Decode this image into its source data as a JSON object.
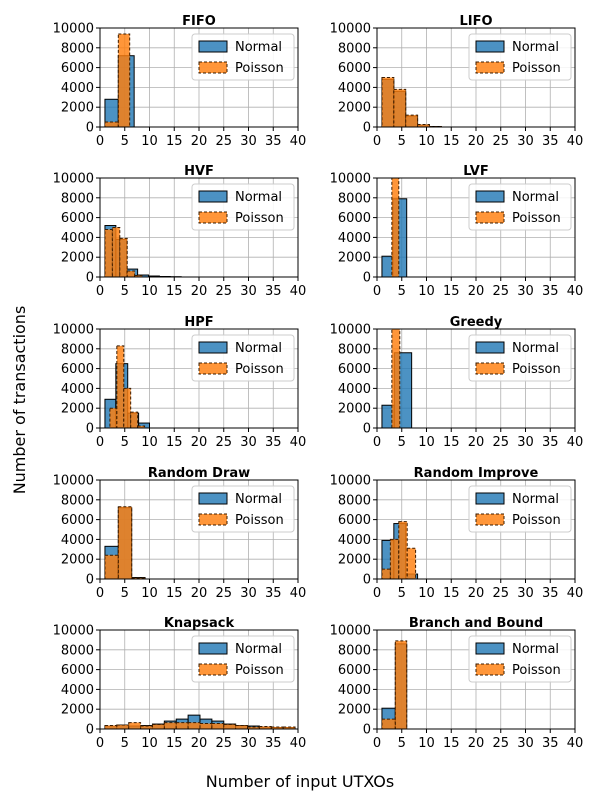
{
  "figure": {
    "xlabel": "Number of input UTXOs",
    "ylabel": "Number of transactions",
    "colors": {
      "normal": "#1f77b4",
      "poisson": "#ff7f0e"
    }
  },
  "chart_data": [
    {
      "type": "bar",
      "title": "FIFO",
      "xlim": [
        0,
        40
      ],
      "ylim": [
        0,
        10000
      ],
      "xticks": [
        "0",
        "5",
        "10",
        "15",
        "20",
        "25",
        "30",
        "35",
        "40"
      ],
      "yticks": [
        "0",
        "2000",
        "4000",
        "6000",
        "8000",
        "10000"
      ],
      "legend": [
        "Normal",
        "Poisson"
      ],
      "legend_position": "top-right",
      "grid": true,
      "series": [
        {
          "name": "Normal",
          "bins": [
            [
              1,
              3.7,
              2800
            ],
            [
              3.7,
              6.9,
              7200
            ]
          ]
        },
        {
          "name": "Poisson",
          "bins": [
            [
              1,
              3.7,
              500
            ],
            [
              3.7,
              6,
              9400
            ]
          ]
        }
      ]
    },
    {
      "type": "bar",
      "title": "LIFO",
      "xlim": [
        0,
        40
      ],
      "ylim": [
        0,
        10000
      ],
      "xticks": [
        "0",
        "5",
        "10",
        "15",
        "20",
        "25",
        "30",
        "35",
        "40"
      ],
      "yticks": [
        "0",
        "2000",
        "4000",
        "6000",
        "8000",
        "10000"
      ],
      "legend": [
        "Normal",
        "Poisson"
      ],
      "legend_position": "top-right",
      "grid": true,
      "series": [
        {
          "name": "Normal",
          "bins": [
            [
              1,
              3.4,
              4800
            ],
            [
              3.4,
              5.8,
              3600
            ],
            [
              5.8,
              8.2,
              1100
            ],
            [
              8.2,
              10.6,
              200
            ],
            [
              10.6,
              13,
              50
            ]
          ]
        },
        {
          "name": "Poisson",
          "bins": [
            [
              1,
              3.4,
              5000
            ],
            [
              3.4,
              5.8,
              3800
            ],
            [
              5.8,
              8.2,
              1200
            ],
            [
              8.2,
              10.6,
              250
            ],
            [
              10.6,
              13,
              50
            ]
          ]
        }
      ]
    },
    {
      "type": "bar",
      "title": "HVF",
      "xlim": [
        0,
        40
      ],
      "ylim": [
        0,
        10000
      ],
      "xticks": [
        "0",
        "5",
        "10",
        "15",
        "20",
        "25",
        "30",
        "35",
        "40"
      ],
      "yticks": [
        "0",
        "2000",
        "4000",
        "6000",
        "8000",
        "10000"
      ],
      "legend": [
        "Normal",
        "Poisson"
      ],
      "legend_position": "top-right",
      "grid": true,
      "series": [
        {
          "name": "Normal",
          "bins": [
            [
              1,
              3.2,
              5200
            ],
            [
              3.2,
              5.4,
              3800
            ],
            [
              5.4,
              7.6,
              800
            ],
            [
              7.6,
              9.8,
              200
            ],
            [
              9.8,
              12,
              100
            ],
            [
              12,
              14.2,
              50
            ],
            [
              14.2,
              16.4,
              30
            ]
          ]
        },
        {
          "name": "Poisson",
          "bins": [
            [
              1,
              2.5,
              4800
            ],
            [
              2.5,
              4,
              5000
            ],
            [
              4,
              5.5,
              3900
            ],
            [
              5.5,
              7,
              600
            ],
            [
              7,
              8.5,
              150
            ]
          ]
        }
      ]
    },
    {
      "type": "bar",
      "title": "LVF",
      "xlim": [
        0,
        40
      ],
      "ylim": [
        0,
        10000
      ],
      "xticks": [
        "0",
        "5",
        "10",
        "15",
        "20",
        "25",
        "30",
        "35",
        "40"
      ],
      "yticks": [
        "0",
        "2000",
        "4000",
        "6000",
        "8000",
        "10000"
      ],
      "legend": [
        "Normal",
        "Poisson"
      ],
      "legend_position": "top-right",
      "grid": true,
      "series": [
        {
          "name": "Normal",
          "bins": [
            [
              1,
              3.2,
              2100
            ],
            [
              3.2,
              6,
              7900
            ]
          ]
        },
        {
          "name": "Poisson",
          "bins": [
            [
              3,
              4.4,
              10000
            ]
          ]
        }
      ]
    },
    {
      "type": "bar",
      "title": "HPF",
      "xlim": [
        0,
        40
      ],
      "ylim": [
        0,
        10000
      ],
      "xticks": [
        "0",
        "5",
        "10",
        "15",
        "20",
        "25",
        "30",
        "35",
        "40"
      ],
      "yticks": [
        "0",
        "2000",
        "4000",
        "6000",
        "8000",
        "10000"
      ],
      "legend": [
        "Normal",
        "Poisson"
      ],
      "legend_position": "top-right",
      "grid": true,
      "series": [
        {
          "name": "Normal",
          "bins": [
            [
              1,
              3.2,
              2900
            ],
            [
              3.2,
              5.6,
              6500
            ],
            [
              5.6,
              7.8,
              1500
            ],
            [
              7.8,
              10,
              500
            ]
          ]
        },
        {
          "name": "Poisson",
          "bins": [
            [
              2,
              3.4,
              2000
            ],
            [
              3.4,
              4.8,
              8300
            ],
            [
              4.8,
              6.2,
              4000
            ],
            [
              6.2,
              7.6,
              1600
            ],
            [
              7.6,
              9,
              200
            ]
          ]
        }
      ]
    },
    {
      "type": "bar",
      "title": "Greedy",
      "xlim": [
        0,
        40
      ],
      "ylim": [
        0,
        10000
      ],
      "xticks": [
        "0",
        "5",
        "10",
        "15",
        "20",
        "25",
        "30",
        "35",
        "40"
      ],
      "yticks": [
        "0",
        "2000",
        "4000",
        "6000",
        "8000",
        "10000"
      ],
      "legend": [
        "Normal",
        "Poisson"
      ],
      "legend_position": "top-right",
      "grid": true,
      "series": [
        {
          "name": "Normal",
          "bins": [
            [
              1,
              3.5,
              2300
            ],
            [
              3.5,
              7,
              7600
            ]
          ]
        },
        {
          "name": "Poisson",
          "bins": [
            [
              3,
              4.6,
              10000
            ]
          ]
        }
      ]
    },
    {
      "type": "bar",
      "title": "Random Draw",
      "xlim": [
        0,
        40
      ],
      "ylim": [
        0,
        10000
      ],
      "xticks": [
        "0",
        "5",
        "10",
        "15",
        "20",
        "25",
        "30",
        "35",
        "40"
      ],
      "yticks": [
        "0",
        "2000",
        "4000",
        "6000",
        "8000",
        "10000"
      ],
      "legend": [
        "Normal",
        "Poisson"
      ],
      "legend_position": "top-right",
      "grid": true,
      "series": [
        {
          "name": "Normal",
          "bins": [
            [
              1,
              3.7,
              3300
            ],
            [
              3.7,
              6.4,
              7200
            ],
            [
              6.4,
              9.1,
              150
            ]
          ]
        },
        {
          "name": "Poisson",
          "bins": [
            [
              1,
              3.7,
              2400
            ],
            [
              3.7,
              6.4,
              7300
            ],
            [
              6.4,
              9.1,
              100
            ]
          ]
        }
      ]
    },
    {
      "type": "bar",
      "title": "Random Improve",
      "xlim": [
        0,
        40
      ],
      "ylim": [
        0,
        10000
      ],
      "xticks": [
        "0",
        "5",
        "10",
        "15",
        "20",
        "25",
        "30",
        "35",
        "40"
      ],
      "yticks": [
        "0",
        "2000",
        "4000",
        "6000",
        "8000",
        "10000"
      ],
      "legend": [
        "Normal",
        "Poisson"
      ],
      "legend_position": "top-right",
      "grid": true,
      "series": [
        {
          "name": "Normal",
          "bins": [
            [
              1,
              3.4,
              3900
            ],
            [
              3.4,
              5.8,
              5600
            ],
            [
              5.8,
              8.2,
              500
            ]
          ]
        },
        {
          "name": "Poisson",
          "bins": [
            [
              1,
              2.7,
              1000
            ],
            [
              2.7,
              4.4,
              4000
            ],
            [
              4.4,
              6.1,
              5800
            ],
            [
              6.1,
              7.8,
              3100
            ]
          ]
        }
      ]
    },
    {
      "type": "bar",
      "title": "Knapsack",
      "xlim": [
        0,
        40
      ],
      "ylim": [
        0,
        10000
      ],
      "xticks": [
        "0",
        "5",
        "10",
        "15",
        "20",
        "25",
        "30",
        "35",
        "40"
      ],
      "yticks": [
        "0",
        "2000",
        "4000",
        "6000",
        "8000",
        "10000"
      ],
      "legend": [
        "Normal",
        "Poisson"
      ],
      "legend_position": "top-right",
      "grid": true,
      "series": [
        {
          "name": "Normal",
          "bins": [
            [
              1,
              3.4,
              300
            ],
            [
              3.4,
              5.8,
              400
            ],
            [
              5.8,
              8.2,
              300
            ],
            [
              8.2,
              10.6,
              350
            ],
            [
              10.6,
              13,
              500
            ],
            [
              13,
              15.4,
              800
            ],
            [
              15.4,
              17.8,
              1000
            ],
            [
              17.8,
              20.2,
              1400
            ],
            [
              20.2,
              22.6,
              1000
            ],
            [
              22.6,
              25,
              800
            ],
            [
              25,
              27.4,
              500
            ],
            [
              27.4,
              29.8,
              350
            ],
            [
              29.8,
              32.2,
              300
            ],
            [
              32.2,
              34.6,
              200
            ],
            [
              34.6,
              37,
              150
            ],
            [
              37,
              39.4,
              150
            ]
          ]
        },
        {
          "name": "Poisson",
          "bins": [
            [
              1,
              3.4,
              350
            ],
            [
              3.4,
              5.8,
              400
            ],
            [
              5.8,
              8.2,
              650
            ],
            [
              8.2,
              10.6,
              300
            ],
            [
              10.6,
              13,
              450
            ],
            [
              13,
              15.4,
              650
            ],
            [
              15.4,
              17.8,
              650
            ],
            [
              17.8,
              20.2,
              650
            ],
            [
              20.2,
              22.6,
              550
            ],
            [
              22.6,
              25,
              550
            ],
            [
              25,
              27.4,
              450
            ],
            [
              27.4,
              29.8,
              350
            ],
            [
              29.8,
              32.2,
              200
            ],
            [
              32.2,
              34.6,
              250
            ],
            [
              34.6,
              37,
              200
            ],
            [
              37,
              39.4,
              200
            ]
          ]
        }
      ]
    },
    {
      "type": "bar",
      "title": "Branch and Bound",
      "xlim": [
        0,
        40
      ],
      "ylim": [
        0,
        10000
      ],
      "xticks": [
        "0",
        "5",
        "10",
        "15",
        "20",
        "25",
        "30",
        "35",
        "40"
      ],
      "yticks": [
        "0",
        "2000",
        "4000",
        "6000",
        "8000",
        "10000"
      ],
      "legend": [
        "Normal",
        "Poisson"
      ],
      "legend_position": "top-right",
      "grid": true,
      "series": [
        {
          "name": "Normal",
          "bins": [
            [
              1,
              3.7,
              2100
            ],
            [
              3.7,
              6,
              8600
            ]
          ]
        },
        {
          "name": "Poisson",
          "bins": [
            [
              1,
              3.7,
              1000
            ],
            [
              3.7,
              6,
              8900
            ]
          ]
        }
      ]
    }
  ]
}
